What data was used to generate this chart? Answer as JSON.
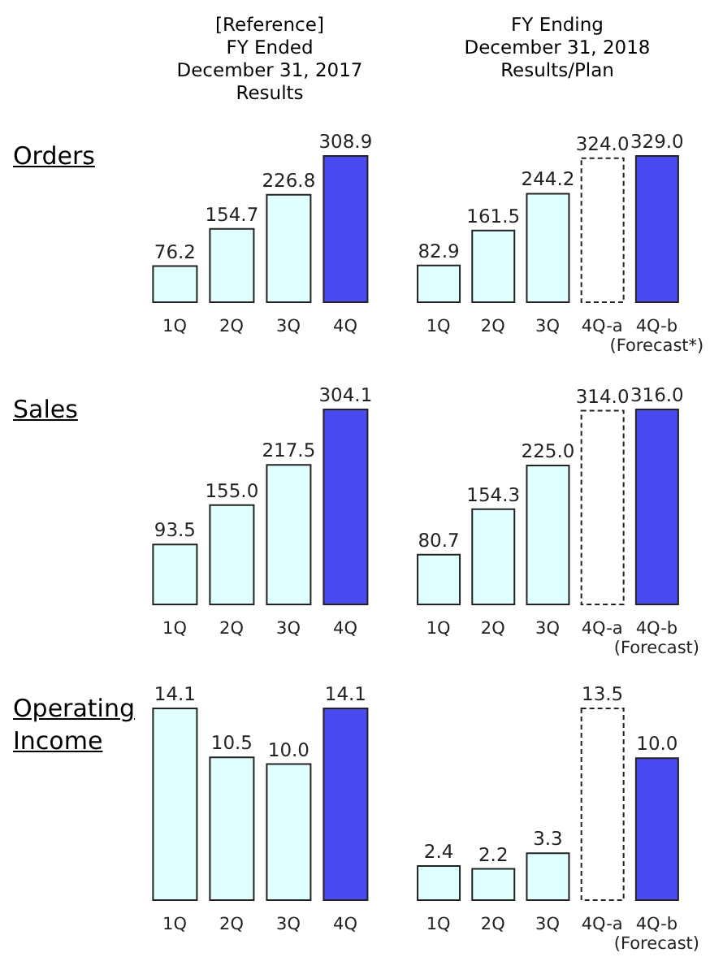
{
  "chart_data": [
    {
      "type": "bar",
      "title": "Orders",
      "subtitle": "[Reference]\nFY Ended\nDecember 31, 2017\nResults",
      "categories": [
        "1Q",
        "2Q",
        "3Q",
        "4Q"
      ],
      "values": [
        76.2,
        154.7,
        226.8,
        308.9
      ],
      "value_labels": [
        "76.2",
        "154.7",
        "226.8",
        "308.9"
      ],
      "colors": [
        "#e0ffff",
        "#e0ffff",
        "#e0ffff",
        "#4a4af0"
      ]
    },
    {
      "type": "bar",
      "subtitle": "FY Ending\nDecember 31, 2018\nResults/Plan",
      "categories": [
        "1Q",
        "2Q",
        "3Q",
        "4Q-a",
        "4Q-b (Forecast*)"
      ],
      "values": [
        82.9,
        161.5,
        244.2,
        324.0,
        329.0
      ],
      "value_labels": [
        "82.9",
        "161.5",
        "244.2",
        "324.0",
        "329.0"
      ],
      "colors": [
        "#e0ffff",
        "#e0ffff",
        "#e0ffff",
        "#ffffff",
        "#4a4af0"
      ]
    },
    {
      "type": "bar",
      "title": "Sales",
      "categories": [
        "1Q",
        "2Q",
        "3Q",
        "4Q"
      ],
      "values": [
        93.5,
        155.0,
        217.5,
        304.1
      ],
      "value_labels": [
        "93.5",
        "155.0",
        "217.5",
        "304.1"
      ],
      "colors": [
        "#e0ffff",
        "#e0ffff",
        "#e0ffff",
        "#4a4af0"
      ]
    },
    {
      "type": "bar",
      "categories": [
        "1Q",
        "2Q",
        "3Q",
        "4Q-a",
        "4Q-b (Forecast)"
      ],
      "values": [
        80.7,
        154.3,
        225.0,
        314.0,
        316.0
      ],
      "value_labels": [
        "80.7",
        "154.3",
        "225.0",
        "314.0",
        "316.0"
      ],
      "colors": [
        "#e0ffff",
        "#e0ffff",
        "#e0ffff",
        "#ffffff",
        "#4a4af0"
      ]
    },
    {
      "type": "bar",
      "title": "Operating Income",
      "categories": [
        "1Q",
        "2Q",
        "3Q",
        "4Q"
      ],
      "values": [
        14.1,
        10.5,
        10.0,
        14.1
      ],
      "value_labels": [
        "14.1",
        "10.5",
        "10.0",
        "14.1"
      ],
      "colors": [
        "#e0ffff",
        "#e0ffff",
        "#e0ffff",
        "#4a4af0"
      ]
    },
    {
      "type": "bar",
      "categories": [
        "1Q",
        "2Q",
        "3Q",
        "4Q-a",
        "4Q-b (Forecast)"
      ],
      "values": [
        2.4,
        2.2,
        3.3,
        13.5,
        10.0
      ],
      "value_labels": [
        "2.4",
        "2.2",
        "3.3",
        "13.5",
        "10.0"
      ],
      "colors": [
        "#e0ffff",
        "#e0ffff",
        "#e0ffff",
        "#ffffff",
        "#4a4af0"
      ]
    }
  ]
}
